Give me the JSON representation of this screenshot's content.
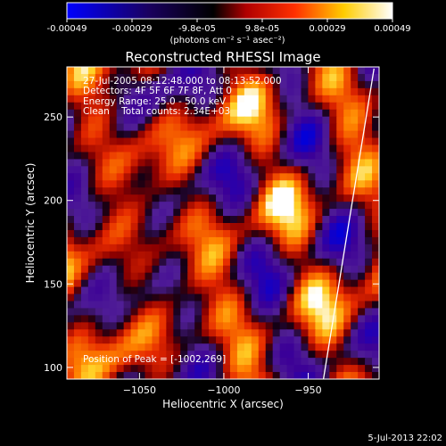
{
  "colorbar": {
    "tick_labels": [
      "-0.00049",
      "-0.00029",
      "-9.8e-05",
      "9.8e-05",
      "0.00029",
      "0.00049"
    ],
    "unit_label": "(photons cm⁻² s⁻¹ asec⁻²)",
    "range": [
      -0.00049,
      0.00049
    ],
    "colors": [
      "#0000ff",
      "#000000",
      "#ff0000",
      "#ffff00",
      "#ffffff"
    ]
  },
  "info": {
    "time_range": "27-Jul-2005 08:12:48.000 to 08:13:52.000",
    "detectors": "Detectors: 4F 5F 6F 7F 8F, Att 0",
    "energy_range": "Energy Range: 25.0 - 50.0 keV",
    "clean_counts": "Clean    Total counts: 2.34E+03",
    "peak": "Position of Peak = [-1002,269]"
  },
  "timestamp": "5-Jul-2013 22:02",
  "chart_data": {
    "type": "heatmap",
    "title": "Reconstructed RHESSI Image",
    "xlabel": "Heliocentric X (arcsec)",
    "ylabel": "Heliocentric Y (arcsec)",
    "xlim": [
      -1093,
      -908
    ],
    "ylim": [
      93,
      280
    ],
    "xticks": [
      -1050,
      -1000,
      -950
    ],
    "yticks": [
      100,
      150,
      200,
      250
    ],
    "xtick_labels": [
      "−1050",
      "−1000",
      "−950"
    ],
    "ytick_labels": [
      "100",
      "150",
      "200",
      "250"
    ],
    "limb_curve": {
      "x": [
        -941,
        -936,
        -931,
        -926,
        -921,
        -916,
        -911
      ],
      "y": [
        93,
        124,
        155,
        186,
        217,
        248,
        279
      ]
    },
    "peak_position": [
      -1002,
      269
    ],
    "colormap": "blue-black-red-yellow-white"
  }
}
